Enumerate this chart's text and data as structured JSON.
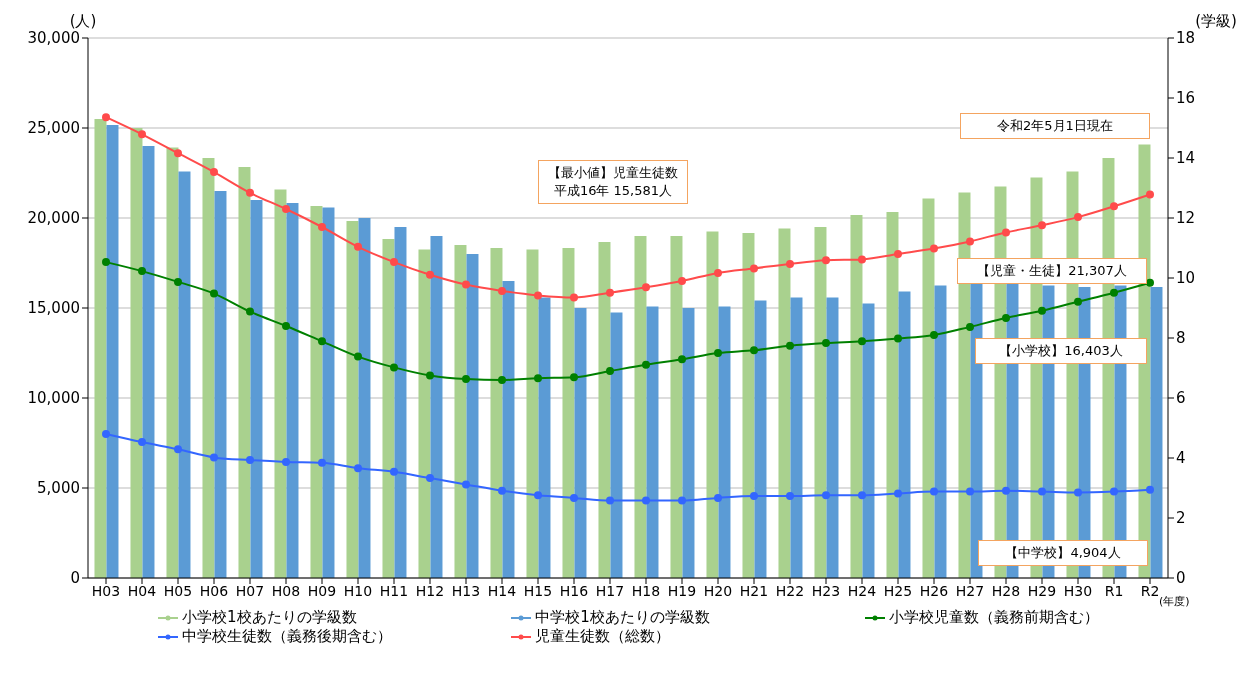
{
  "chart_data": {
    "type": "bar",
    "xlabel": "(年度)",
    "ylabel": "(人)",
    "y2label": "(学級)",
    "categories": [
      "H03",
      "H04",
      "H05",
      "H06",
      "H07",
      "H08",
      "H09",
      "H10",
      "H11",
      "H12",
      "H13",
      "H14",
      "H15",
      "H16",
      "H17",
      "H18",
      "H19",
      "H20",
      "H21",
      "H22",
      "H23",
      "H24",
      "H25",
      "H26",
      "H27",
      "H28",
      "H29",
      "H30",
      "R1",
      "R2"
    ],
    "series": [
      {
        "name": "小学校1校あたりの学級数",
        "axis": "y2",
        "color": "#a9d18e",
        "values": [
          15.3,
          15.0,
          14.35,
          14.0,
          13.7,
          12.95,
          12.4,
          11.9,
          11.3,
          10.95,
          11.1,
          11.0,
          10.95,
          11.0,
          11.2,
          11.4,
          11.4,
          11.55,
          11.5,
          11.65,
          11.7,
          12.1,
          12.2,
          12.65,
          12.85,
          13.05,
          13.35,
          13.55,
          14.0,
          14.45
        ]
      },
      {
        "name": "中学校1校あたりの学級数",
        "axis": "y2",
        "color": "#5b9bd5",
        "values": [
          15.1,
          14.4,
          13.55,
          12.9,
          12.6,
          12.5,
          12.35,
          12.0,
          11.7,
          11.4,
          10.8,
          9.9,
          9.35,
          9.0,
          8.85,
          9.05,
          9.0,
          9.05,
          9.25,
          9.35,
          9.35,
          9.15,
          9.55,
          9.75,
          9.85,
          9.8,
          9.75,
          9.7,
          9.75,
          9.7
        ]
      },
      {
        "name": "小学校児童数（義務前期含む）",
        "type": "line",
        "color": "#008000",
        "values": [
          17550,
          17050,
          16450,
          15800,
          14800,
          14000,
          13150,
          12300,
          11700,
          11250,
          11050,
          11000,
          11100,
          11150,
          11500,
          11850,
          12150,
          12500,
          12650,
          12900,
          13050,
          13150,
          13300,
          13500,
          13950,
          14450,
          14850,
          15350,
          15850,
          16403
        ]
      },
      {
        "name": "中学校生徒数（義務後期含む）",
        "type": "line",
        "color": "#3366ff",
        "values": [
          8000,
          7550,
          7150,
          6700,
          6550,
          6450,
          6400,
          6100,
          5900,
          5550,
          5200,
          4850,
          4600,
          4450,
          4300,
          4300,
          4300,
          4450,
          4550,
          4550,
          4600,
          4600,
          4700,
          4800,
          4800,
          4850,
          4800,
          4750,
          4800,
          4904
        ]
      },
      {
        "name": "児童生徒数（総数）",
        "type": "line",
        "color": "#ff4b4b",
        "values": [
          25600,
          24650,
          23600,
          22550,
          21400,
          20500,
          19500,
          18400,
          17550,
          16850,
          16300,
          15950,
          15700,
          15581,
          15850,
          16150,
          16500,
          16950,
          17200,
          17450,
          17650,
          17700,
          18000,
          18300,
          18700,
          19200,
          19600,
          20050,
          20650,
          21307
        ]
      }
    ],
    "ylim": [
      0,
      30000
    ],
    "yticks": [
      0,
      {
        "value": 5000,
        "label": "5,000"
      },
      {
        "value": 10000,
        "label": "10,000"
      },
      {
        "value": 15000,
        "label": "15,000"
      },
      {
        "value": 20000,
        "label": "20,000"
      },
      {
        "value": 25000,
        "label": "25,000"
      },
      {
        "value": 30000,
        "label": "30,000"
      }
    ],
    "y2lim": [
      0,
      18
    ],
    "y2ticks": [
      0,
      2,
      4,
      6,
      8,
      10,
      12,
      14,
      16,
      18
    ],
    "grid": "y",
    "legend": "bottom",
    "marker": "circle",
    "line_style": "solid",
    "annotations": [
      "【最小値】児童生徒数平成16年 15,581人",
      "令和2年5月1日現在",
      "【児童・生徒】21,307人",
      "【小学校】16,403人",
      "【中学校】4,904人"
    ]
  }
}
